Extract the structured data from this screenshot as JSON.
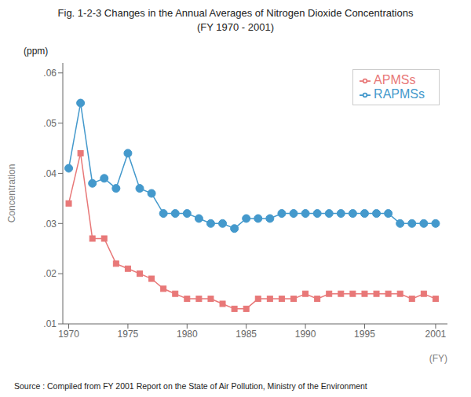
{
  "chart_data": {
    "type": "line",
    "title": "Fig. 1-2-3  Changes in the Annual Averages of Nitrogen Dioxide Concentrations",
    "subtitle": "(FY 1970 - 2001)",
    "xlabel": "(FY)",
    "ylabel": "Concentration",
    "y_unit": "(ppm)",
    "source": "Source : Compiled from FY 2001 Report on the State of Air Pollution, Ministry of the Environment",
    "x": [
      1970,
      1971,
      1972,
      1973,
      1974,
      1975,
      1976,
      1977,
      1978,
      1979,
      1980,
      1981,
      1982,
      1983,
      1984,
      1985,
      1986,
      1987,
      1988,
      1989,
      1990,
      1991,
      1992,
      1993,
      1994,
      1995,
      1996,
      1997,
      1998,
      1999,
      2000,
      2001
    ],
    "series": [
      {
        "name": "APMSs",
        "color": "#e87878",
        "marker": "square",
        "values": [
          0.034,
          0.044,
          0.027,
          0.027,
          0.022,
          0.021,
          0.02,
          0.019,
          0.017,
          0.016,
          0.015,
          0.015,
          0.015,
          0.014,
          0.013,
          0.013,
          0.015,
          0.015,
          0.015,
          0.015,
          0.016,
          0.015,
          0.016,
          0.016,
          0.016,
          0.016,
          0.016,
          0.016,
          0.016,
          0.015,
          0.016,
          0.015
        ]
      },
      {
        "name": "RAPMSs",
        "color": "#4499cc",
        "marker": "circle",
        "values": [
          0.041,
          0.054,
          0.038,
          0.039,
          0.037,
          0.044,
          0.037,
          0.036,
          0.032,
          0.032,
          0.032,
          0.031,
          0.03,
          0.03,
          0.029,
          0.031,
          0.031,
          0.031,
          0.032,
          0.032,
          0.032,
          0.032,
          0.032,
          0.032,
          0.032,
          0.032,
          0.032,
          0.032,
          0.03,
          0.03,
          0.03,
          0.03
        ]
      }
    ],
    "xlim": [
      1969.5,
      2002
    ],
    "xticks": [
      1970,
      1975,
      1980,
      1985,
      1990,
      1995,
      2001
    ],
    "ylim": [
      0.01,
      0.062
    ],
    "yticks": [
      {
        "value": 0.01,
        "label": ".01"
      },
      {
        "value": 0.02,
        "label": ".02"
      },
      {
        "value": 0.03,
        "label": ".03"
      },
      {
        "value": 0.04,
        "label": ".04"
      },
      {
        "value": 0.05,
        "label": ".05"
      },
      {
        "value": 0.06,
        "label": ".06"
      }
    ],
    "grid": false,
    "legend": "upper right"
  }
}
